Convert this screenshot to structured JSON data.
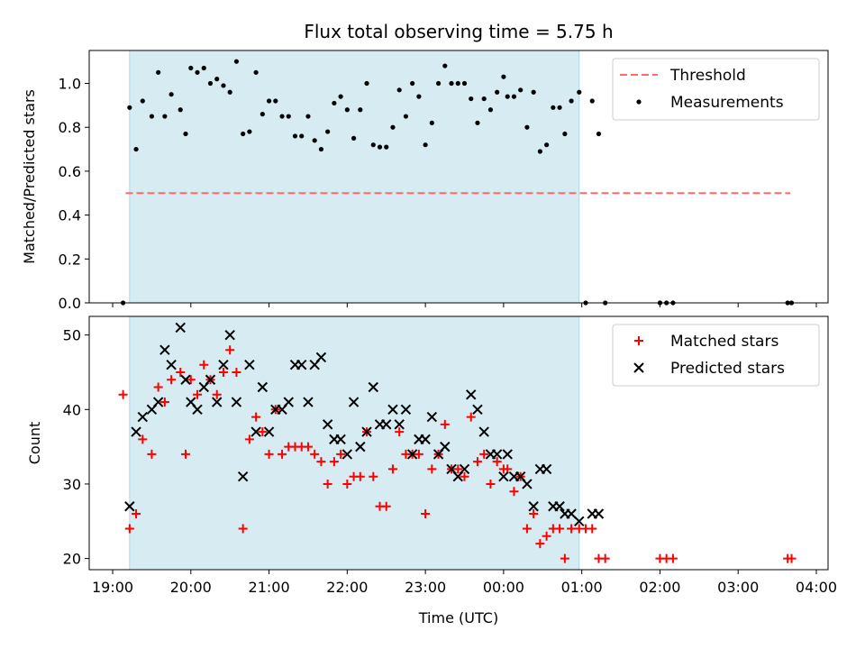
{
  "title": "Flux total observing time = 5.75 h",
  "xlabel": "Time (UTC)",
  "colors": {
    "shade": "#add8e6",
    "threshold": "#ff6b6b",
    "measurements": "#000000",
    "matched": "#ff0000",
    "predicted": "#000000"
  },
  "x_ticks": [
    "19:00",
    "20:00",
    "21:00",
    "22:00",
    "23:00",
    "00:00",
    "01:00",
    "02:00",
    "03:00",
    "04:00"
  ],
  "chart_data": [
    {
      "type": "scatter",
      "ylabel": "Matched/Predicted stars",
      "xlim": [
        18.7,
        4.15
      ],
      "ylim": [
        0,
        1.15
      ],
      "y_ticks": [
        "0.0",
        "0.2",
        "0.4",
        "0.6",
        "0.8",
        "1.0"
      ],
      "y_tick_values": [
        0,
        0.2,
        0.4,
        0.6,
        0.8,
        1.0
      ],
      "shaded_region": {
        "x_start": "19:13",
        "x_end": "00:58"
      },
      "threshold": {
        "name": "Threshold",
        "y": 0.5,
        "x_start": "19:10",
        "x_end": "03:40"
      },
      "legend": [
        "Threshold",
        "Measurements"
      ],
      "legend_position": "top-right",
      "series": [
        {
          "name": "Measurements",
          "points": [
            [
              "19:08",
              0.0
            ],
            [
              "19:13",
              0.89
            ],
            [
              "19:18",
              0.7
            ],
            [
              "19:23",
              0.92
            ],
            [
              "19:30",
              0.85
            ],
            [
              "19:35",
              1.05
            ],
            [
              "19:40",
              0.85
            ],
            [
              "19:45",
              0.95
            ],
            [
              "19:52",
              0.88
            ],
            [
              "19:56",
              0.77
            ],
            [
              "20:00",
              1.07
            ],
            [
              "20:05",
              1.05
            ],
            [
              "20:10",
              1.07
            ],
            [
              "20:15",
              1.0
            ],
            [
              "20:20",
              1.02
            ],
            [
              "20:25",
              0.99
            ],
            [
              "20:30",
              0.96
            ],
            [
              "20:35",
              1.1
            ],
            [
              "20:40",
              0.77
            ],
            [
              "20:45",
              0.78
            ],
            [
              "20:50",
              1.05
            ],
            [
              "20:55",
              0.86
            ],
            [
              "21:00",
              0.92
            ],
            [
              "21:05",
              0.92
            ],
            [
              "21:10",
              0.85
            ],
            [
              "21:15",
              0.85
            ],
            [
              "21:20",
              0.76
            ],
            [
              "21:25",
              0.76
            ],
            [
              "21:30",
              0.85
            ],
            [
              "21:35",
              0.74
            ],
            [
              "21:40",
              0.7
            ],
            [
              "21:45",
              0.78
            ],
            [
              "21:50",
              0.91
            ],
            [
              "21:55",
              0.94
            ],
            [
              "22:00",
              0.88
            ],
            [
              "22:05",
              0.75
            ],
            [
              "22:10",
              0.88
            ],
            [
              "22:15",
              1.0
            ],
            [
              "22:20",
              0.72
            ],
            [
              "22:25",
              0.71
            ],
            [
              "22:30",
              0.71
            ],
            [
              "22:35",
              0.8
            ],
            [
              "22:40",
              0.97
            ],
            [
              "22:45",
              0.85
            ],
            [
              "22:50",
              1.0
            ],
            [
              "22:55",
              0.94
            ],
            [
              "23:00",
              0.72
            ],
            [
              "23:05",
              0.82
            ],
            [
              "23:10",
              1.0
            ],
            [
              "23:15",
              1.08
            ],
            [
              "23:20",
              1.0
            ],
            [
              "23:25",
              1.0
            ],
            [
              "23:30",
              1.0
            ],
            [
              "23:35",
              0.93
            ],
            [
              "23:40",
              0.82
            ],
            [
              "23:45",
              0.93
            ],
            [
              "23:50",
              0.88
            ],
            [
              "23:55",
              0.96
            ],
            [
              "00:00",
              1.03
            ],
            [
              "00:03",
              0.94
            ],
            [
              "00:08",
              0.94
            ],
            [
              "00:13",
              0.97
            ],
            [
              "00:18",
              0.8
            ],
            [
              "00:23",
              0.96
            ],
            [
              "00:28",
              0.69
            ],
            [
              "00:33",
              0.72
            ],
            [
              "00:38",
              0.89
            ],
            [
              "00:43",
              0.89
            ],
            [
              "00:47",
              0.77
            ],
            [
              "00:52",
              0.92
            ],
            [
              "00:58",
              0.96
            ],
            [
              "01:03",
              0.0
            ],
            [
              "01:08",
              0.92
            ],
            [
              "01:13",
              0.77
            ],
            [
              "01:18",
              0.0
            ],
            [
              "02:00",
              0.0
            ],
            [
              "02:05",
              0.0
            ],
            [
              "02:10",
              0.0
            ],
            [
              "03:38",
              0.0
            ],
            [
              "03:41",
              0.0
            ]
          ]
        }
      ]
    },
    {
      "type": "scatter",
      "ylabel": "Count",
      "xlabel": "Time (UTC)",
      "xlim": [
        18.7,
        4.15
      ],
      "ylim": [
        18.5,
        52.5
      ],
      "y_ticks": [
        "20",
        "30",
        "40",
        "50"
      ],
      "y_tick_values": [
        20,
        30,
        40,
        50
      ],
      "shaded_region": {
        "x_start": "19:13",
        "x_end": "00:58"
      },
      "legend": [
        "Matched stars",
        "Predicted stars"
      ],
      "legend_position": "top-right",
      "series": [
        {
          "name": "Matched stars",
          "points": [
            [
              "19:08",
              42
            ],
            [
              "19:13",
              24
            ],
            [
              "19:18",
              26
            ],
            [
              "19:23",
              36
            ],
            [
              "19:30",
              34
            ],
            [
              "19:35",
              43
            ],
            [
              "19:40",
              41
            ],
            [
              "19:45",
              44
            ],
            [
              "19:52",
              45
            ],
            [
              "19:56",
              34
            ],
            [
              "20:00",
              44
            ],
            [
              "20:05",
              42
            ],
            [
              "20:10",
              46
            ],
            [
              "20:15",
              44
            ],
            [
              "20:20",
              42
            ],
            [
              "20:25",
              45
            ],
            [
              "20:30",
              48
            ],
            [
              "20:35",
              45
            ],
            [
              "20:40",
              24
            ],
            [
              "20:45",
              36
            ],
            [
              "20:50",
              39
            ],
            [
              "20:55",
              37
            ],
            [
              "21:00",
              34
            ],
            [
              "21:05",
              40
            ],
            [
              "21:10",
              34
            ],
            [
              "21:15",
              35
            ],
            [
              "21:20",
              35
            ],
            [
              "21:25",
              35
            ],
            [
              "21:30",
              35
            ],
            [
              "21:35",
              34
            ],
            [
              "21:40",
              33
            ],
            [
              "21:45",
              30
            ],
            [
              "21:50",
              33
            ],
            [
              "21:55",
              34
            ],
            [
              "22:00",
              30
            ],
            [
              "22:05",
              31
            ],
            [
              "22:10",
              31
            ],
            [
              "22:15",
              37
            ],
            [
              "22:20",
              31
            ],
            [
              "22:25",
              27
            ],
            [
              "22:30",
              27
            ],
            [
              "22:35",
              32
            ],
            [
              "22:40",
              37
            ],
            [
              "22:45",
              34
            ],
            [
              "22:50",
              34
            ],
            [
              "22:55",
              34
            ],
            [
              "23:00",
              26
            ],
            [
              "23:05",
              32
            ],
            [
              "23:10",
              34
            ],
            [
              "23:15",
              38
            ],
            [
              "23:20",
              32
            ],
            [
              "23:25",
              32
            ],
            [
              "23:30",
              31
            ],
            [
              "23:35",
              39
            ],
            [
              "23:40",
              33
            ],
            [
              "23:45",
              34
            ],
            [
              "23:50",
              30
            ],
            [
              "23:55",
              33
            ],
            [
              "00:00",
              32
            ],
            [
              "00:03",
              32
            ],
            [
              "00:08",
              29
            ],
            [
              "00:13",
              31
            ],
            [
              "00:18",
              24
            ],
            [
              "00:23",
              26
            ],
            [
              "00:28",
              22
            ],
            [
              "00:33",
              23
            ],
            [
              "00:38",
              24
            ],
            [
              "00:43",
              24
            ],
            [
              "00:47",
              20
            ],
            [
              "00:52",
              24
            ],
            [
              "00:58",
              24
            ],
            [
              "01:03",
              24
            ],
            [
              "01:08",
              24
            ],
            [
              "01:13",
              20
            ],
            [
              "01:18",
              20
            ],
            [
              "02:00",
              20
            ],
            [
              "02:05",
              20
            ],
            [
              "02:10",
              20
            ],
            [
              "03:38",
              20
            ],
            [
              "03:41",
              20
            ]
          ]
        },
        {
          "name": "Predicted stars",
          "points": [
            [
              "19:13",
              27
            ],
            [
              "19:18",
              37
            ],
            [
              "19:23",
              39
            ],
            [
              "19:30",
              40
            ],
            [
              "19:35",
              41
            ],
            [
              "19:40",
              48
            ],
            [
              "19:45",
              46
            ],
            [
              "19:52",
              51
            ],
            [
              "19:56",
              44
            ],
            [
              "20:00",
              41
            ],
            [
              "20:05",
              40
            ],
            [
              "20:10",
              43
            ],
            [
              "20:15",
              44
            ],
            [
              "20:20",
              41
            ],
            [
              "20:25",
              46
            ],
            [
              "20:30",
              50
            ],
            [
              "20:35",
              41
            ],
            [
              "20:40",
              31
            ],
            [
              "20:45",
              46
            ],
            [
              "20:50",
              37
            ],
            [
              "20:55",
              43
            ],
            [
              "21:00",
              37
            ],
            [
              "21:05",
              40
            ],
            [
              "21:10",
              40
            ],
            [
              "21:15",
              41
            ],
            [
              "21:20",
              46
            ],
            [
              "21:25",
              46
            ],
            [
              "21:30",
              41
            ],
            [
              "21:35",
              46
            ],
            [
              "21:40",
              47
            ],
            [
              "21:45",
              38
            ],
            [
              "21:50",
              36
            ],
            [
              "21:55",
              36
            ],
            [
              "22:00",
              34
            ],
            [
              "22:05",
              41
            ],
            [
              "22:10",
              35
            ],
            [
              "22:15",
              37
            ],
            [
              "22:20",
              43
            ],
            [
              "22:25",
              38
            ],
            [
              "22:30",
              38
            ],
            [
              "22:35",
              40
            ],
            [
              "22:40",
              38
            ],
            [
              "22:45",
              40
            ],
            [
              "22:50",
              34
            ],
            [
              "22:55",
              36
            ],
            [
              "23:00",
              36
            ],
            [
              "23:05",
              39
            ],
            [
              "23:10",
              34
            ],
            [
              "23:15",
              35
            ],
            [
              "23:20",
              32
            ],
            [
              "23:25",
              31
            ],
            [
              "23:30",
              32
            ],
            [
              "23:35",
              42
            ],
            [
              "23:40",
              40
            ],
            [
              "23:45",
              37
            ],
            [
              "23:50",
              34
            ],
            [
              "23:55",
              34
            ],
            [
              "00:00",
              31
            ],
            [
              "00:03",
              34
            ],
            [
              "00:08",
              31
            ],
            [
              "00:13",
              31
            ],
            [
              "00:18",
              30
            ],
            [
              "00:23",
              27
            ],
            [
              "00:28",
              32
            ],
            [
              "00:33",
              32
            ],
            [
              "00:38",
              27
            ],
            [
              "00:43",
              27
            ],
            [
              "00:47",
              26
            ],
            [
              "00:52",
              26
            ],
            [
              "00:58",
              25
            ],
            [
              "01:08",
              26
            ],
            [
              "01:13",
              26
            ]
          ]
        }
      ]
    }
  ]
}
